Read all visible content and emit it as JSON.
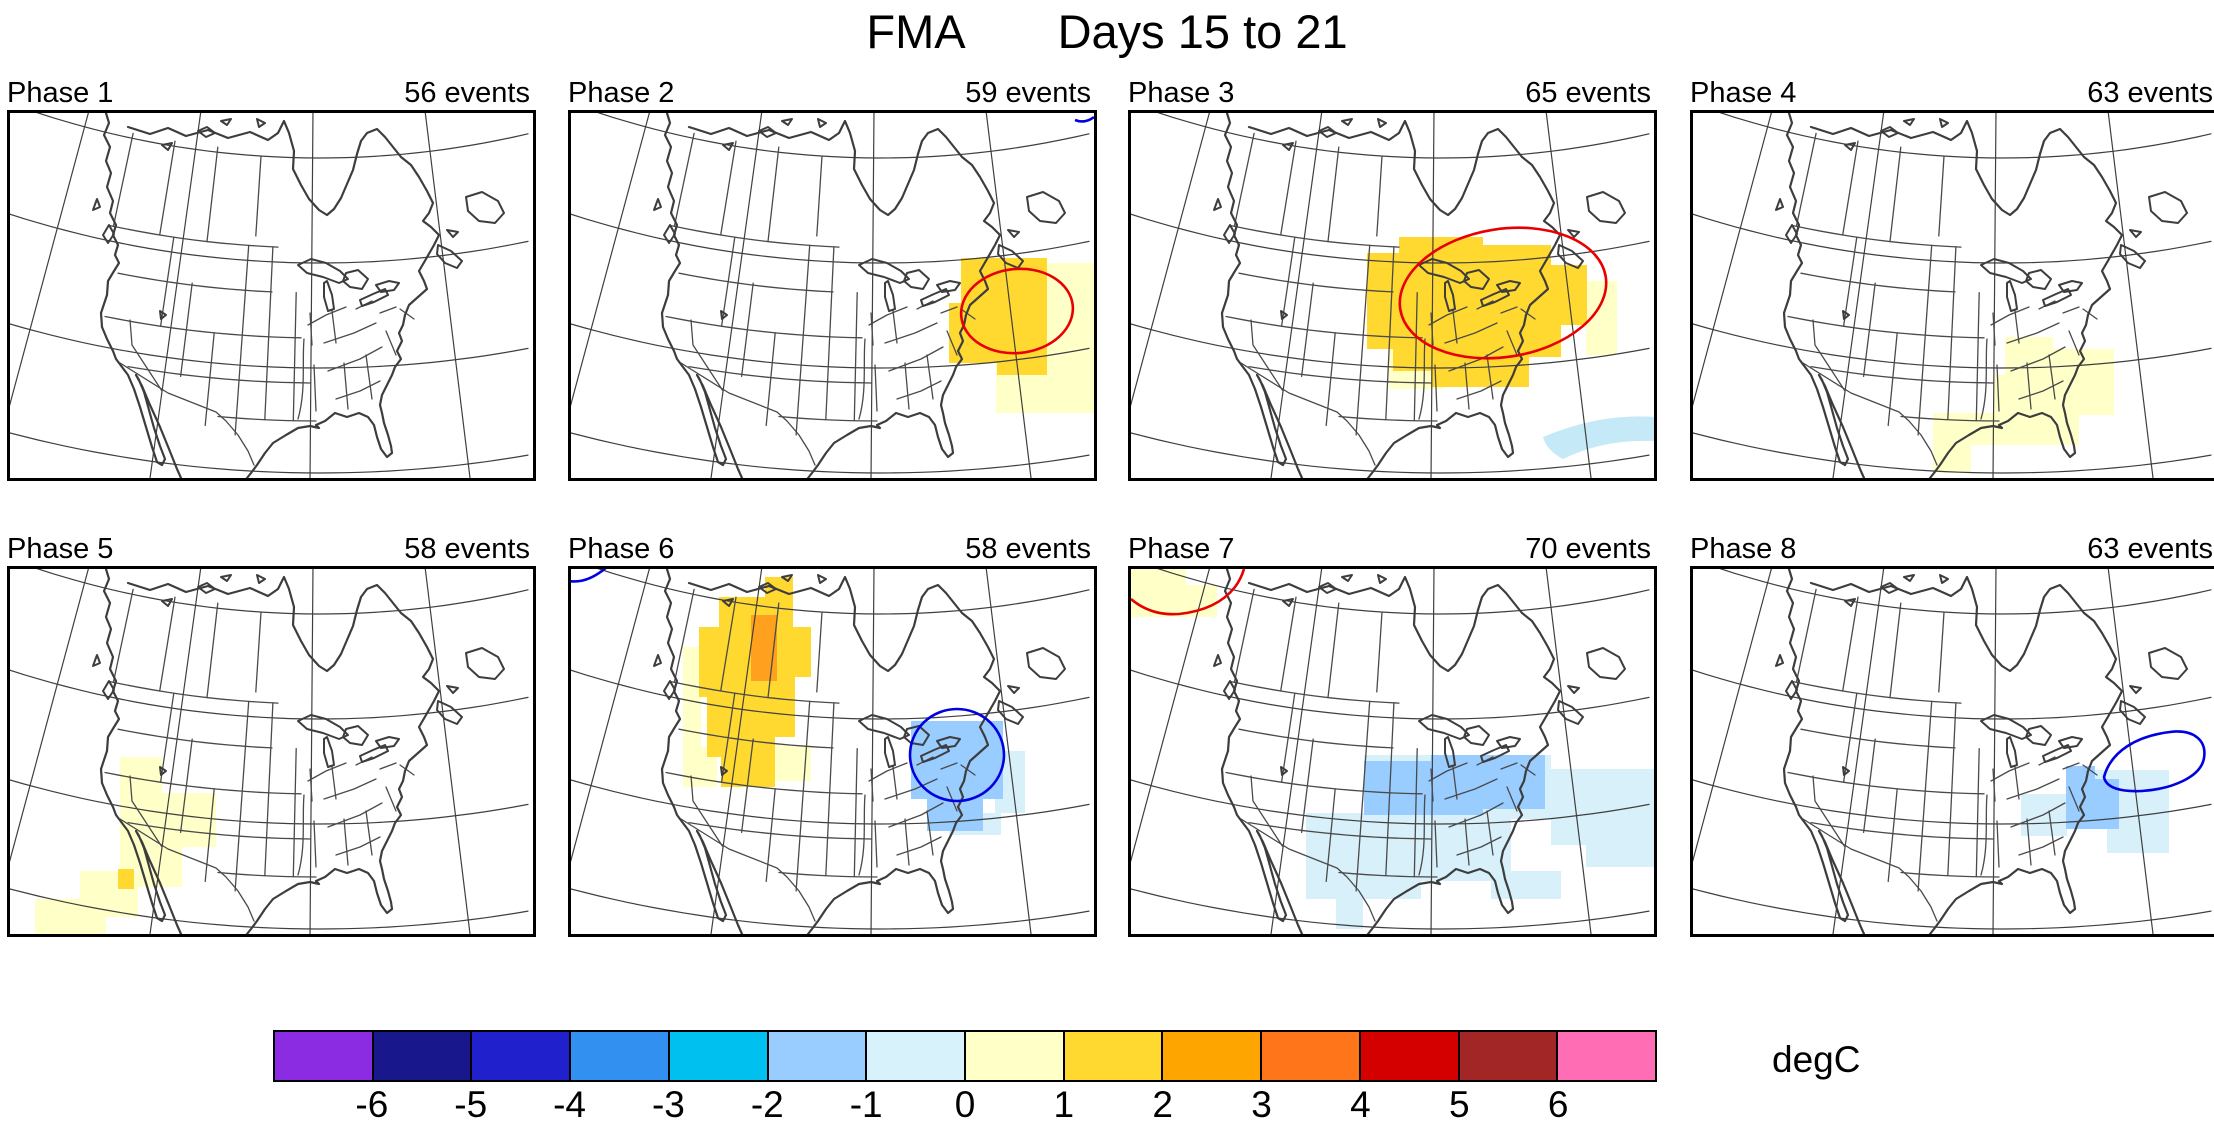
{
  "title": {
    "left": "FMA",
    "right": "Days 15 to 21"
  },
  "panels": [
    {
      "label": "Phase 1",
      "events": "56 events"
    },
    {
      "label": "Phase 2",
      "events": "59 events"
    },
    {
      "label": "Phase 3",
      "events": "65 events"
    },
    {
      "label": "Phase 4",
      "events": "63 events"
    },
    {
      "label": "Phase 5",
      "events": "58 events"
    },
    {
      "label": "Phase 6",
      "events": "58 events"
    },
    {
      "label": "Phase 7",
      "events": "70 events"
    },
    {
      "label": "Phase 8",
      "events": "63 events"
    }
  ],
  "colorbar": {
    "units": "degC",
    "tick_labels": [
      "-6",
      "-5",
      "-4",
      "-3",
      "-2",
      "-1",
      "0",
      "1",
      "2",
      "3",
      "4",
      "5",
      "6"
    ],
    "colors": [
      "#8b2be2",
      "#18188c",
      "#2020cd",
      "#3190f0",
      "#00c0f0",
      "#99ccff",
      "#d8f2fb",
      "#ffffc8",
      "#ffd930",
      "#ffa500",
      "#ff7519",
      "#d40000",
      "#a22626",
      "#ff6eb4"
    ]
  },
  "overlay_palette": {
    "pos1": "#ffffc8",
    "pos2": "#ffd930",
    "pos3": "#ffa01e",
    "neg1": "#99ccff",
    "neg0": "#d8f0fa",
    "neg0b": "#c6e9f8",
    "contour_red": "#e80000",
    "contour_blue": "#0000e0"
  },
  "chart_data": {
    "type": "heatmap",
    "title": "FMA    Days 15 to 21",
    "variable": "temperature anomaly composite maps over North America by MJO phase",
    "units": "degC",
    "colorbar_bounds": [
      -6,
      -5,
      -4,
      -3,
      -2,
      -1,
      0,
      1,
      2,
      3,
      4,
      5,
      6
    ],
    "legend_position": "bottom",
    "panels": [
      {
        "phase": "Phase 1",
        "events": 56,
        "anomalies": [],
        "contours": []
      },
      {
        "phase": "Phase 2",
        "events": 59,
        "anomalies": [
          {
            "region": "New England / southern Quebec and adjacent western Atlantic",
            "value_degC": "+1 to +2"
          },
          {
            "region": "western Atlantic southeast of the warm core",
            "value_degC": "0 to +1"
          }
        ],
        "contours": [
          {
            "color": "red",
            "location": "significance ellipse over New England and offshore Atlantic"
          },
          {
            "color": "blue",
            "location": "tiny fragment at top-right corner"
          }
        ]
      },
      {
        "phase": "Phase 3",
        "events": 65,
        "anomalies": [
          {
            "region": "Upper Midwest, Great Lakes, Ohio Valley and Northeast US",
            "value_degC": "+1 to +2"
          },
          {
            "region": "fringes west/south/east of the warm core",
            "value_degC": "0 to +1"
          },
          {
            "region": "narrow band off the Southeast Atlantic coast",
            "value_degC": "-1 to 0"
          }
        ],
        "contours": [
          {
            "color": "red",
            "location": "large significance ellipse over Great Lakes / Northeast"
          }
        ]
      },
      {
        "phase": "Phase 4",
        "events": 63,
        "anomalies": [
          {
            "region": "Southeast US from Kentucky/Tennessee to Gulf Coast, Texas coast and offshore Atlantic",
            "value_degC": "0 to +1"
          }
        ],
        "contours": []
      },
      {
        "phase": "Phase 5",
        "events": 58,
        "anomalies": [
          {
            "region": "Great Basin / Four Corners southwest through Baja and offshore Pacific",
            "value_degC": "0 to +1"
          },
          {
            "region": "small cell near northern Gulf of California",
            "value_degC": "+1 to +2"
          }
        ],
        "contours": []
      },
      {
        "phase": "Phase 6",
        "events": 58,
        "anomalies": [
          {
            "region": "northwestern Canada (NWT, Alberta, Saskatchewan) into Montana/Wyoming",
            "value_degC": "+1 to +2"
          },
          {
            "region": "core over NWT / northern Alberta",
            "value_degC": "+2 to +3"
          },
          {
            "region": "fringe west and south of the warm wedge",
            "value_degC": "0 to +1"
          },
          {
            "region": "lower Great Lakes / Northeast US",
            "value_degC": "-2 to -1"
          },
          {
            "region": "Mid-Atlantic offshore waters",
            "value_degC": "-1 to 0"
          }
        ],
        "contours": [
          {
            "color": "blue",
            "location": "ellipse over Northeast US"
          },
          {
            "color": "blue",
            "location": "small fragment at top-left corner"
          }
        ]
      },
      {
        "phase": "Phase 7",
        "events": 70,
        "anomalies": [
          {
            "region": "central Plains through Midwest to Mid-Atlantic",
            "value_degC": "-2 to -1"
          },
          {
            "region": "broad surrounding area incl. Texas, northern Mexico and western Atlantic",
            "value_degC": "-1 to 0"
          },
          {
            "region": "far northwest corner (Gulf of Alaska)",
            "value_degC": "0 to +1"
          }
        ],
        "contours": [
          {
            "color": "red",
            "location": "arc at top-left (Gulf of Alaska) corner"
          }
        ]
      },
      {
        "phase": "Phase 8",
        "events": 63,
        "anomalies": [
          {
            "region": "Mid-Atlantic coast (Virginia/Maryland)",
            "value_degC": "-2 to -1"
          },
          {
            "region": "adjacent Appalachians and offshore Atlantic",
            "value_degC": "-1 to 0"
          }
        ],
        "contours": [
          {
            "color": "blue",
            "location": "lens over western Atlantic east of New England"
          }
        ]
      }
    ]
  }
}
